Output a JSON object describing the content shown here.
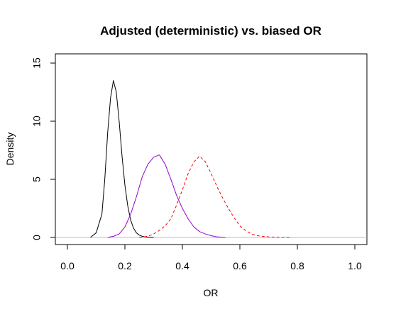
{
  "chart_data": {
    "type": "line",
    "title": "Adjusted (deterministic) vs. biased OR",
    "xlabel": "OR",
    "ylabel": "Density",
    "xlim": [
      0.0,
      1.0
    ],
    "ylim": [
      0,
      15
    ],
    "x_ticks": [
      "0.0",
      "0.2",
      "0.4",
      "0.6",
      "0.8",
      "1.0"
    ],
    "y_ticks": [
      "0",
      "5",
      "10",
      "15"
    ],
    "grid": false,
    "legend": "none",
    "reference_line": {
      "y": 0,
      "color": "#bebebe"
    },
    "series": [
      {
        "color": "#000000",
        "style": "solid",
        "x": [
          0.08,
          0.1,
          0.12,
          0.13,
          0.14,
          0.15,
          0.16,
          0.17,
          0.18,
          0.19,
          0.2,
          0.21,
          0.22,
          0.23,
          0.24,
          0.25,
          0.26,
          0.27,
          0.28,
          0.29,
          0.3
        ],
        "y": [
          0.0,
          0.4,
          2.0,
          5.0,
          9.0,
          12.0,
          13.5,
          12.5,
          10.0,
          7.0,
          4.5,
          2.7,
          1.5,
          0.8,
          0.4,
          0.2,
          0.1,
          0.05,
          0.02,
          0.01,
          0.0
        ]
      },
      {
        "color": "#9400d3",
        "style": "solid",
        "x": [
          0.14,
          0.16,
          0.18,
          0.2,
          0.22,
          0.24,
          0.26,
          0.28,
          0.3,
          0.32,
          0.34,
          0.36,
          0.38,
          0.4,
          0.42,
          0.44,
          0.46,
          0.48,
          0.5,
          0.52,
          0.55
        ],
        "y": [
          0.0,
          0.1,
          0.3,
          0.9,
          2.0,
          3.5,
          5.2,
          6.3,
          6.9,
          7.1,
          6.3,
          5.0,
          3.6,
          2.5,
          1.6,
          0.9,
          0.5,
          0.3,
          0.15,
          0.05,
          0.0
        ]
      },
      {
        "color": "#ff0000",
        "style": "dashed",
        "x": [
          0.25,
          0.28,
          0.3,
          0.32,
          0.34,
          0.36,
          0.38,
          0.4,
          0.42,
          0.44,
          0.46,
          0.48,
          0.5,
          0.52,
          0.54,
          0.56,
          0.58,
          0.6,
          0.62,
          0.64,
          0.66,
          0.7,
          0.74,
          0.78
        ],
        "y": [
          0.0,
          0.1,
          0.3,
          0.6,
          1.0,
          1.6,
          2.8,
          4.1,
          5.5,
          6.5,
          7.0,
          6.5,
          5.5,
          4.4,
          3.4,
          2.5,
          1.7,
          1.0,
          0.6,
          0.3,
          0.15,
          0.05,
          0.01,
          0.0
        ]
      }
    ]
  }
}
